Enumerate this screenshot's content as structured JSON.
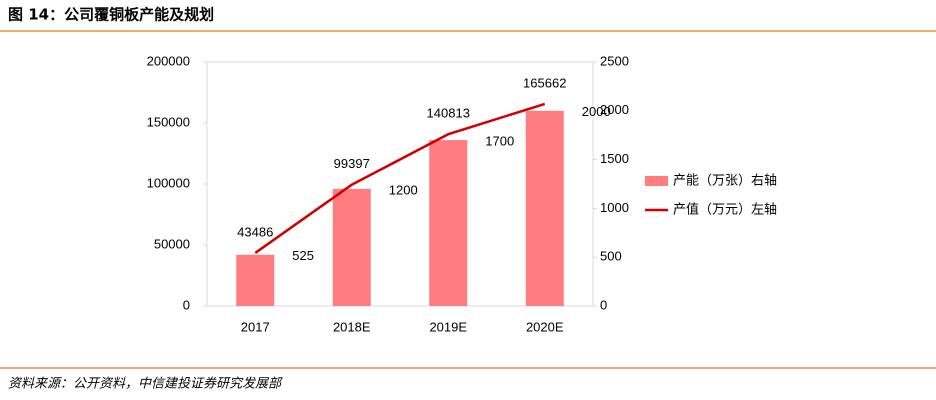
{
  "chart_data": {
    "type": "bar",
    "title": "图 14：公司覆铜板产能及规划",
    "source": "资料来源：公开资料，中信建投证券研究发展部",
    "categories": [
      "2017",
      "2018E",
      "2019E",
      "2020E"
    ],
    "series": [
      {
        "name": "产能（万张）右轴",
        "type": "bar",
        "axis": "y2",
        "color": "#ff7c80",
        "values": [
          525,
          1200,
          1700,
          2000
        ]
      },
      {
        "name": "产值（万元）左轴",
        "type": "line",
        "color": "#d00000",
        "values": [
          43486,
          99397,
          140813,
          165662
        ]
      }
    ],
    "ylim": [
      0,
      200000
    ],
    "yticks": [
      0,
      50000,
      100000,
      150000,
      200000
    ],
    "y2lim": [
      0,
      2500
    ],
    "y2ticks": [
      0,
      500,
      1000,
      1500,
      2000,
      2500
    ],
    "legend": "right"
  }
}
